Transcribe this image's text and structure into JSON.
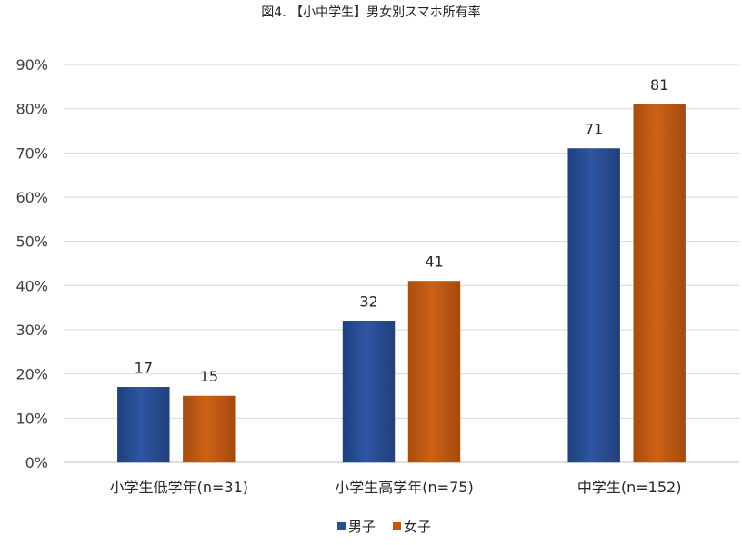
{
  "chart_data": {
    "type": "bar",
    "title": "図4. 【小中学生】男女別スマホ所有率",
    "categories": [
      "小学生低学年(n=31)",
      "小学生高学年(n=75)",
      "中学生(n=152)"
    ],
    "series": [
      {
        "name": "男子",
        "values": [
          17,
          32,
          71
        ],
        "color": "#2b4f93"
      },
      {
        "name": "女子",
        "values": [
          15,
          41,
          81
        ],
        "color": "#c05a13"
      }
    ],
    "ylim": [
      0,
      90
    ],
    "yticks": [
      "0%",
      "10%",
      "20%",
      "30%",
      "40%",
      "50%",
      "60%",
      "70%",
      "80%",
      "90%"
    ],
    "grid": true,
    "legend": "bottom",
    "data_labels": true
  }
}
